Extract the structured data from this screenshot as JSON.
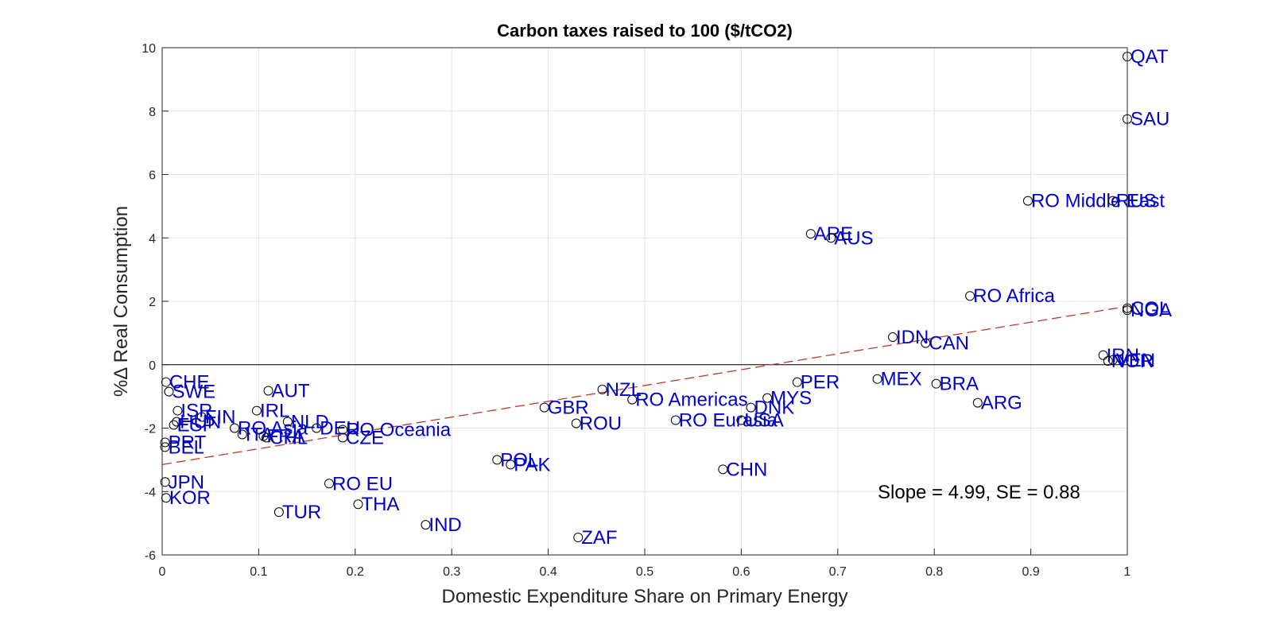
{
  "chart_data": {
    "type": "scatter",
    "title": "Carbon taxes raised to 100 ($/tCO2)",
    "xlabel": "Domestic Expenditure Share on Primary Energy",
    "ylabel": "%Δ Real Consumption",
    "xlim": [
      0,
      1
    ],
    "ylim": [
      -6,
      10
    ],
    "xticks": [
      "0",
      "0.1",
      "0.2",
      "0.3",
      "0.4",
      "0.5",
      "0.6",
      "0.7",
      "0.8",
      "0.9",
      "1"
    ],
    "yticks": [
      "-6",
      "-4",
      "-2",
      "0",
      "2",
      "4",
      "6",
      "8",
      "10"
    ],
    "grid": true,
    "fit_line": {
      "slope": 4.99,
      "x": [
        0,
        1
      ],
      "y": [
        -3.15,
        1.84
      ]
    },
    "annotation": "Slope = 4.99, SE = 0.88",
    "points": [
      {
        "label": "QAT",
        "x": 1.0,
        "y": 9.72
      },
      {
        "label": "SAU",
        "x": 1.0,
        "y": 7.75
      },
      {
        "label": "RO Middle East",
        "x": 0.897,
        "y": 5.17
      },
      {
        "label": "RUS",
        "x": 0.985,
        "y": 5.17
      },
      {
        "label": "ARE",
        "x": 0.672,
        "y": 4.13
      },
      {
        "label": "AUS",
        "x": 0.693,
        "y": 4.0
      },
      {
        "label": "RO Africa",
        "x": 0.837,
        "y": 2.17
      },
      {
        "label": "COL",
        "x": 1.0,
        "y": 1.78
      },
      {
        "label": "NGA",
        "x": 1.0,
        "y": 1.72
      },
      {
        "label": "IDN",
        "x": 0.757,
        "y": 0.87
      },
      {
        "label": "CAN",
        "x": 0.791,
        "y": 0.68
      },
      {
        "label": "IRN",
        "x": 0.975,
        "y": 0.3
      },
      {
        "label": "NOR",
        "x": 0.98,
        "y": 0.12
      },
      {
        "label": "VEN",
        "x": 0.985,
        "y": 0.15
      },
      {
        "label": "MEX",
        "x": 0.741,
        "y": -0.45
      },
      {
        "label": "PER",
        "x": 0.658,
        "y": -0.55
      },
      {
        "label": "BRA",
        "x": 0.802,
        "y": -0.6
      },
      {
        "label": "MYS",
        "x": 0.627,
        "y": -1.05
      },
      {
        "label": "ARG",
        "x": 0.845,
        "y": -1.2
      },
      {
        "label": "DNK",
        "x": 0.61,
        "y": -1.35
      },
      {
        "label": "USA",
        "x": 0.6,
        "y": -1.75
      },
      {
        "label": "RO Eurasia",
        "x": 0.532,
        "y": -1.75
      },
      {
        "label": "NZL",
        "x": 0.456,
        "y": -0.78
      },
      {
        "label": "RO Americas",
        "x": 0.487,
        "y": -1.1
      },
      {
        "label": "GBR",
        "x": 0.396,
        "y": -1.35
      },
      {
        "label": "ROU",
        "x": 0.429,
        "y": -1.85
      },
      {
        "label": "CHN",
        "x": 0.581,
        "y": -3.3
      },
      {
        "label": "POL",
        "x": 0.347,
        "y": -3.0
      },
      {
        "label": "PAK",
        "x": 0.361,
        "y": -3.15
      },
      {
        "label": "ZAF",
        "x": 0.431,
        "y": -5.45
      },
      {
        "label": "IND",
        "x": 0.273,
        "y": -5.05
      },
      {
        "label": "THA",
        "x": 0.203,
        "y": -4.4
      },
      {
        "label": "TUR",
        "x": 0.121,
        "y": -4.65
      },
      {
        "label": "RO EU",
        "x": 0.173,
        "y": -3.75
      },
      {
        "label": "CZE",
        "x": 0.187,
        "y": -2.3
      },
      {
        "label": "DEU",
        "x": 0.16,
        "y": -2.0
      },
      {
        "label": "RO Oceania",
        "x": 0.187,
        "y": -2.05
      },
      {
        "label": "NLD",
        "x": 0.13,
        "y": -1.8
      },
      {
        "label": "IRL",
        "x": 0.098,
        "y": -1.45
      },
      {
        "label": "AUT",
        "x": 0.11,
        "y": -0.82
      },
      {
        "label": "RO Asia",
        "x": 0.075,
        "y": -2.0
      },
      {
        "label": "ITA",
        "x": 0.083,
        "y": -2.2
      },
      {
        "label": "CHL",
        "x": 0.108,
        "y": -2.3
      },
      {
        "label": "FRA",
        "x": 0.105,
        "y": -2.25
      },
      {
        "label": "FIN",
        "x": 0.041,
        "y": -1.65
      },
      {
        "label": "ISR",
        "x": 0.016,
        "y": -1.45
      },
      {
        "label": "HUN",
        "x": 0.015,
        "y": -1.8
      },
      {
        "label": "ESP",
        "x": 0.012,
        "y": -1.9
      },
      {
        "label": "CHE",
        "x": 0.004,
        "y": -0.55
      },
      {
        "label": "SWE",
        "x": 0.007,
        "y": -0.85
      },
      {
        "label": "PRT",
        "x": 0.003,
        "y": -2.45
      },
      {
        "label": "BEL",
        "x": 0.003,
        "y": -2.6
      },
      {
        "label": "JPN",
        "x": 0.003,
        "y": -3.7
      },
      {
        "label": "KOR",
        "x": 0.004,
        "y": -4.2
      }
    ]
  }
}
